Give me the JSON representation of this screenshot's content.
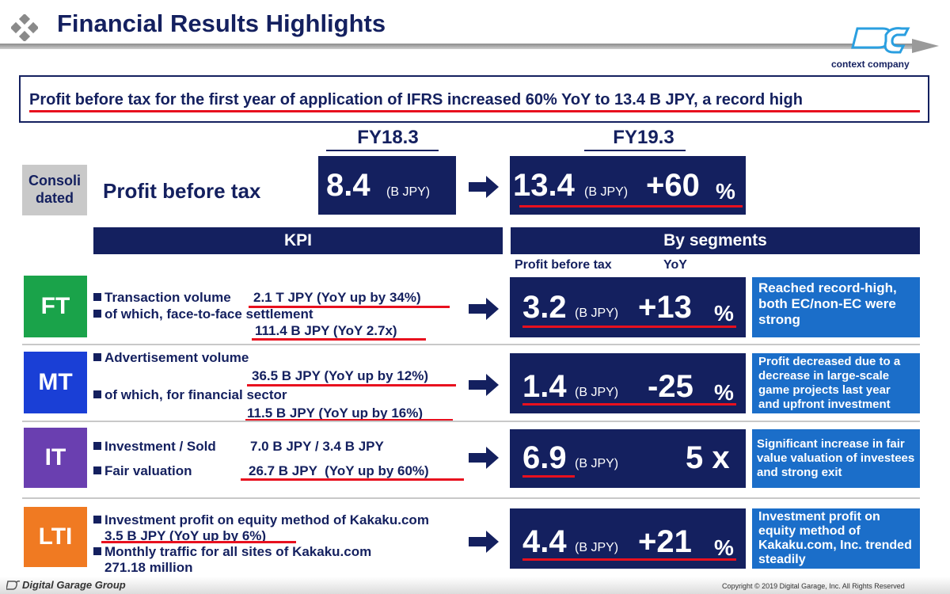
{
  "header": {
    "title": "Financial Results Highlights",
    "logo_tag": "context company"
  },
  "headline": "Profit before tax for the first year of application of IFRS increased 60% YoY to 13.4 B JPY, a record high",
  "consolidated": {
    "label_line1": "Consoli",
    "label_line2": "dated",
    "metric": "Profit before tax",
    "prev_period": "FY18.3",
    "curr_period": "FY19.3",
    "prev_value": "8.4",
    "curr_value": "13.4",
    "unit": "(B JPY)",
    "yoy_value": "+60",
    "yoy_unit": "%"
  },
  "section_headers": {
    "kpi": "KPI",
    "by_segments": "By segments",
    "col_profit": "Profit before tax",
    "col_yoy": "YoY"
  },
  "segments": {
    "ft": {
      "code": "FT",
      "kpi1_label": "Transaction volume",
      "kpi1_value": "2.1 T JPY (YoY up by 34%)",
      "kpi2_label": "of which, face-to-face settlement",
      "kpi2_value": "111.4 B JPY (YoY 2.7x)",
      "profit": "3.2",
      "unit": "(B JPY)",
      "yoy": "+13",
      "yoy_unit": "%",
      "comment": "Reached record-high, both EC/non-EC were strong"
    },
    "mt": {
      "code": "MT",
      "kpi1_label": "Advertisement volume",
      "kpi1_value": "36.5 B JPY (YoY up by 12%)",
      "kpi2_label": "of which, for financial sector",
      "kpi2_value": "11.5 B JPY (YoY up by 16%)",
      "profit": "1.4",
      "unit": "(B JPY)",
      "yoy": "-25",
      "yoy_unit": "%",
      "comment": "Profit decreased due to a decrease in large-scale game projects last year and upfront investment"
    },
    "it": {
      "code": "IT",
      "kpi1_label": "Investment / Sold",
      "kpi1_value": "7.0 B JPY / 3.4 B JPY",
      "kpi2_label": "Fair valuation",
      "kpi2_value": "26.7 B JPY  (YoY up by 60%)",
      "profit": "6.9",
      "unit": "(B JPY)",
      "yoy": "5 x",
      "comment": "Significant increase in fair value valuation of investees and strong exit"
    },
    "lti": {
      "code": "LTI",
      "kpi1_label": "Investment profit on equity method of Kakaku.com",
      "kpi1_value": "3.5 B JPY (YoY up by 6%)",
      "kpi2_label": "Monthly traffic for all sites of Kakaku.com",
      "kpi2_value": "271.18 million",
      "profit": "4.4",
      "unit": "(B JPY)",
      "yoy": "+21",
      "yoy_unit": "%",
      "comment": "Investment profit on equity method of Kakaku.com, Inc. trended steadily"
    }
  },
  "footer": {
    "company": "Digital Garage Group",
    "copyright": "Copyright © 2019 Digital Garage, Inc. All Rights Reserved"
  },
  "colors": {
    "navy": "#14205f",
    "accent_red": "#e8101e",
    "ft_green": "#1aa34a",
    "mt_blue": "#1a3fd6",
    "it_purple": "#6a3fb0",
    "lti_orange": "#f07a22",
    "comment_blue": "#1b6ec9"
  }
}
